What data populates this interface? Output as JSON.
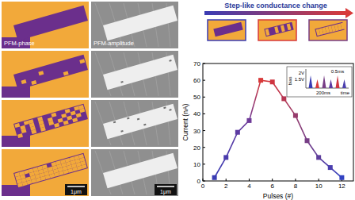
{
  "chart_data": {
    "type": "line",
    "title": "Step-like conductance change",
    "x": [
      1,
      2,
      3,
      4,
      5,
      6,
      7,
      8,
      9,
      10,
      11,
      12
    ],
    "values": [
      2,
      14,
      29,
      36,
      60,
      59,
      49,
      39,
      24,
      14,
      8,
      2
    ],
    "colors": [
      "#3a3cb4",
      "#4a3bac",
      "#5c3aa2",
      "#6e3a98",
      "#d83a3a",
      "#cf3540",
      "#b63652",
      "#963c6c",
      "#773e86",
      "#5e3e9c",
      "#4b3fae",
      "#3242c2"
    ],
    "marker": "square",
    "xlabel": "Pulses (#)",
    "ylabel": "Current (nA)",
    "xlim": [
      0,
      13
    ],
    "ylim": [
      0,
      70
    ],
    "xticks": [
      0,
      2,
      4,
      6,
      8,
      10,
      12
    ],
    "yticks": [
      0,
      10,
      20,
      30,
      40,
      50,
      60,
      70
    ],
    "grid": false,
    "annotations": [
      "bias",
      "2V",
      "1.5V",
      "0.5ms",
      "200ms",
      "time"
    ]
  },
  "images": {
    "phase_label": "PFM-phase",
    "amplitude_label": "PFM-amplitude",
    "scale_bar": "1μm"
  }
}
